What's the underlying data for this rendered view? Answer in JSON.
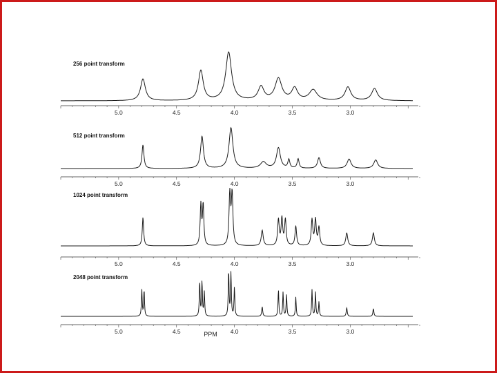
{
  "chart_data": {
    "type": "line",
    "x_unit_label": "PPM",
    "xlim": [
      5.5,
      2.4
    ],
    "x_reversed": true,
    "x_ticks": [
      "5.0",
      "4.5",
      "4.0",
      "3.5",
      "3.0"
    ],
    "x_tick_values": [
      5.0,
      4.5,
      4.0,
      3.5,
      3.0
    ],
    "grid": false,
    "legend": "none",
    "line_color": "#1a1a1a",
    "panels": [
      {
        "label": "256 point transform",
        "baseline_ppm": 2.55,
        "peaks": [
          {
            "ppm": 4.79,
            "height": 0.45,
            "width": 0.025
          },
          {
            "ppm": 4.29,
            "height": 0.62,
            "width": 0.025
          },
          {
            "ppm": 4.05,
            "height": 1.0,
            "width": 0.03
          },
          {
            "ppm": 3.77,
            "height": 0.28,
            "width": 0.03
          },
          {
            "ppm": 3.62,
            "height": 0.45,
            "width": 0.035
          },
          {
            "ppm": 3.48,
            "height": 0.25,
            "width": 0.03
          },
          {
            "ppm": 3.32,
            "height": 0.22,
            "width": 0.04
          },
          {
            "ppm": 3.02,
            "height": 0.28,
            "width": 0.03
          },
          {
            "ppm": 2.79,
            "height": 0.25,
            "width": 0.03
          }
        ]
      },
      {
        "label": "512 point transform",
        "baseline_ppm": 2.55,
        "peaks": [
          {
            "ppm": 4.79,
            "height": 0.55,
            "width": 0.01
          },
          {
            "ppm": 4.28,
            "height": 0.75,
            "width": 0.015
          },
          {
            "ppm": 4.03,
            "height": 0.95,
            "width": 0.02
          },
          {
            "ppm": 3.75,
            "height": 0.15,
            "width": 0.03
          },
          {
            "ppm": 3.62,
            "height": 0.48,
            "width": 0.02
          },
          {
            "ppm": 3.53,
            "height": 0.2,
            "width": 0.01
          },
          {
            "ppm": 3.45,
            "height": 0.22,
            "width": 0.01
          },
          {
            "ppm": 3.27,
            "height": 0.25,
            "width": 0.015
          },
          {
            "ppm": 3.01,
            "height": 0.22,
            "width": 0.02
          },
          {
            "ppm": 2.78,
            "height": 0.2,
            "width": 0.02
          }
        ]
      },
      {
        "label": "1024 point transform",
        "baseline_ppm": 2.55,
        "peaks": [
          {
            "ppm": 4.79,
            "height": 0.55,
            "width": 0.007
          },
          {
            "ppm": 4.29,
            "height": 0.78,
            "width": 0.007
          },
          {
            "ppm": 4.27,
            "height": 0.78,
            "width": 0.007
          },
          {
            "ppm": 4.04,
            "height": 0.98,
            "width": 0.008
          },
          {
            "ppm": 4.02,
            "height": 0.98,
            "width": 0.008
          },
          {
            "ppm": 3.76,
            "height": 0.3,
            "width": 0.01
          },
          {
            "ppm": 3.62,
            "height": 0.5,
            "width": 0.008
          },
          {
            "ppm": 3.59,
            "height": 0.52,
            "width": 0.008
          },
          {
            "ppm": 3.56,
            "height": 0.5,
            "width": 0.008
          },
          {
            "ppm": 3.47,
            "height": 0.38,
            "width": 0.008
          },
          {
            "ppm": 3.33,
            "height": 0.5,
            "width": 0.008
          },
          {
            "ppm": 3.3,
            "height": 0.5,
            "width": 0.008
          },
          {
            "ppm": 3.27,
            "height": 0.35,
            "width": 0.008
          },
          {
            "ppm": 3.03,
            "height": 0.25,
            "width": 0.01
          },
          {
            "ppm": 2.8,
            "height": 0.25,
            "width": 0.01
          }
        ]
      },
      {
        "label": "2048 point transform",
        "baseline_ppm": 2.55,
        "peaks": [
          {
            "ppm": 4.8,
            "height": 0.55,
            "width": 0.004
          },
          {
            "ppm": 4.78,
            "height": 0.55,
            "width": 0.004
          },
          {
            "ppm": 4.3,
            "height": 0.72,
            "width": 0.004
          },
          {
            "ppm": 4.28,
            "height": 0.72,
            "width": 0.004
          },
          {
            "ppm": 4.26,
            "height": 0.5,
            "width": 0.004
          },
          {
            "ppm": 4.05,
            "height": 0.95,
            "width": 0.004
          },
          {
            "ppm": 4.03,
            "height": 0.9,
            "width": 0.004
          },
          {
            "ppm": 4.0,
            "height": 0.6,
            "width": 0.004
          },
          {
            "ppm": 3.76,
            "height": 0.2,
            "width": 0.005
          },
          {
            "ppm": 3.62,
            "height": 0.55,
            "width": 0.004
          },
          {
            "ppm": 3.58,
            "height": 0.5,
            "width": 0.004
          },
          {
            "ppm": 3.55,
            "height": 0.45,
            "width": 0.004
          },
          {
            "ppm": 3.47,
            "height": 0.4,
            "width": 0.004
          },
          {
            "ppm": 3.33,
            "height": 0.55,
            "width": 0.004
          },
          {
            "ppm": 3.3,
            "height": 0.5,
            "width": 0.004
          },
          {
            "ppm": 3.27,
            "height": 0.3,
            "width": 0.004
          },
          {
            "ppm": 3.03,
            "height": 0.18,
            "width": 0.005
          },
          {
            "ppm": 2.8,
            "height": 0.16,
            "width": 0.005
          }
        ]
      }
    ]
  }
}
